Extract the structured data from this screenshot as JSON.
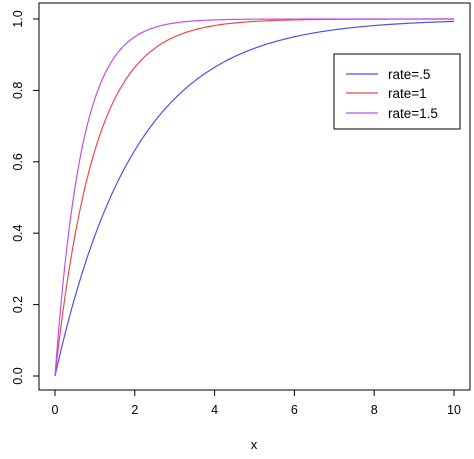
{
  "chart_data": {
    "type": "line",
    "title": "",
    "xlabel": "x",
    "ylabel": "",
    "xlim": [
      0,
      10
    ],
    "ylim": [
      0,
      1
    ],
    "x_ticks": [
      0,
      2,
      4,
      6,
      8,
      10
    ],
    "y_ticks": [
      0.0,
      0.2,
      0.4,
      0.6,
      0.8,
      1.0
    ],
    "x_tick_labels": [
      "0",
      "2",
      "4",
      "6",
      "8",
      "10"
    ],
    "y_tick_labels": [
      "0.0",
      "0.2",
      "0.4",
      "0.6",
      "0.8",
      "1.0"
    ],
    "grid": false,
    "legend_position": "top-right",
    "x": [
      0,
      0.25,
      0.5,
      0.75,
      1,
      1.5,
      2,
      2.5,
      3,
      3.5,
      4,
      5,
      6,
      7,
      8,
      9,
      10
    ],
    "series": [
      {
        "name": "rate=.5",
        "color": "#5050f0",
        "values": [
          0,
          0.118,
          0.221,
          0.313,
          0.393,
          0.528,
          0.632,
          0.713,
          0.777,
          0.826,
          0.865,
          0.918,
          0.95,
          0.97,
          0.982,
          0.989,
          0.993
        ]
      },
      {
        "name": "rate=1",
        "color": "#f04848",
        "values": [
          0,
          0.221,
          0.393,
          0.528,
          0.632,
          0.777,
          0.865,
          0.918,
          0.95,
          0.97,
          0.982,
          0.993,
          0.998,
          0.999,
          1.0,
          1.0,
          1.0
        ]
      },
      {
        "name": "rate=1.5",
        "color": "#c050f0",
        "values": [
          0,
          0.313,
          0.528,
          0.675,
          0.777,
          0.895,
          0.95,
          0.976,
          0.989,
          0.995,
          0.998,
          0.999,
          1.0,
          1.0,
          1.0,
          1.0,
          1.0
        ]
      }
    ]
  }
}
